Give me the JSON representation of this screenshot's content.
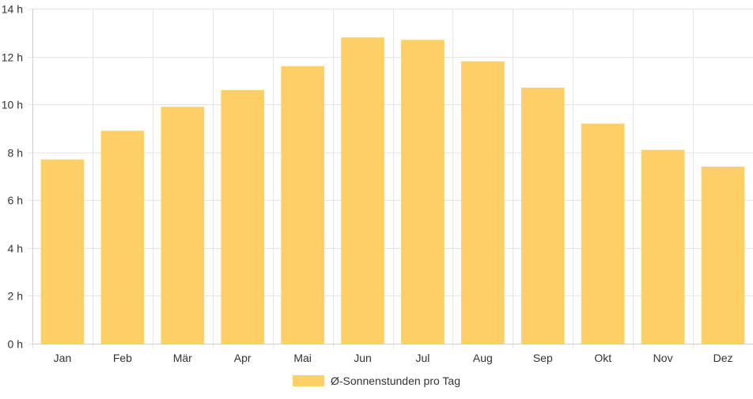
{
  "colors": {
    "bar": "#fdd066",
    "grid": "#e4e4e4",
    "text": "#333333"
  },
  "chart_data": {
    "type": "bar",
    "categories": [
      "Jan",
      "Feb",
      "Mär",
      "Apr",
      "Mai",
      "Jun",
      "Jul",
      "Aug",
      "Sep",
      "Okt",
      "Nov",
      "Dez"
    ],
    "series": [
      {
        "name": "Ø-Sonnenstunden pro Tag",
        "values": [
          7.7,
          8.9,
          9.9,
          10.6,
          11.6,
          12.8,
          12.7,
          11.8,
          10.7,
          9.2,
          8.1,
          7.4
        ]
      }
    ],
    "y_ticks": [
      {
        "value": 0,
        "label": "0 h"
      },
      {
        "value": 2,
        "label": "2 h"
      },
      {
        "value": 4,
        "label": "4 h"
      },
      {
        "value": 6,
        "label": "6 h"
      },
      {
        "value": 8,
        "label": "8 h"
      },
      {
        "value": 10,
        "label": "10 h"
      },
      {
        "value": 12,
        "label": "12 h"
      },
      {
        "value": 14,
        "label": "14 h"
      }
    ],
    "ylim": [
      0,
      14
    ],
    "grid": true,
    "legend_position": "bottom"
  }
}
